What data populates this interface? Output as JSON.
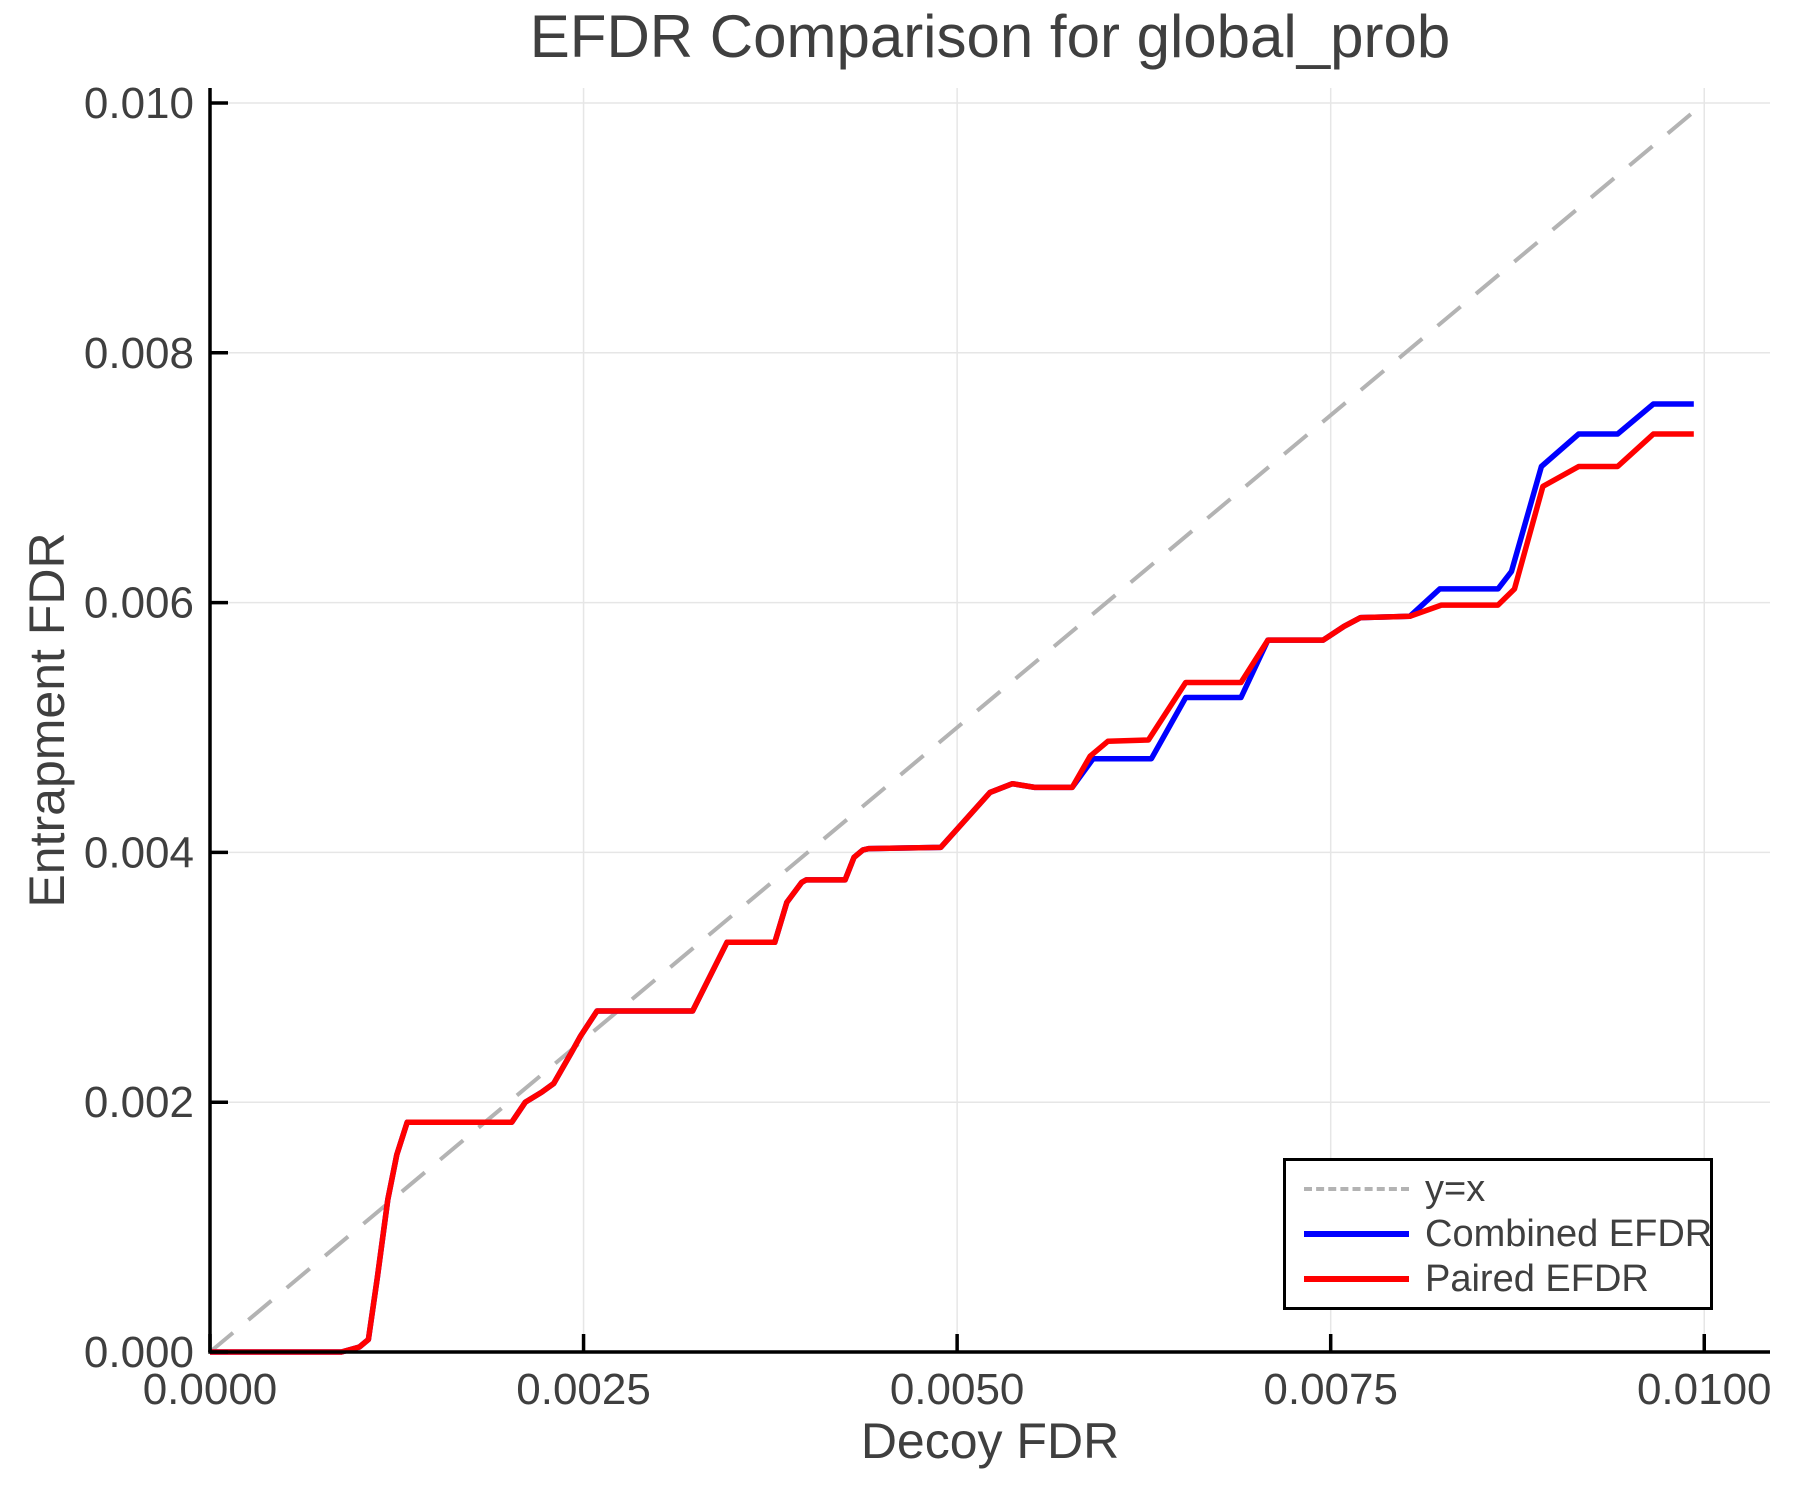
{
  "figure": {
    "title": "EFDR Comparison for global_prob",
    "xlabel": "Decoy FDR",
    "ylabel": "Entrapment FDR"
  },
  "chart_data": {
    "type": "line",
    "title": "EFDR Comparison for global_prob",
    "xlabel": "Decoy FDR",
    "ylabel": "Entrapment FDR",
    "xlim": [
      0.0,
      0.01044
    ],
    "ylim": [
      0.0,
      0.01012
    ],
    "grid": true,
    "legend_position": "lower right",
    "xticks": {
      "values": [
        0.0,
        0.0025,
        0.005,
        0.0075,
        0.01
      ],
      "labels": [
        "0.0000",
        "0.0025",
        "0.0050",
        "0.0075",
        "0.0100"
      ]
    },
    "yticks": {
      "values": [
        0.0,
        0.002,
        0.004,
        0.006,
        0.008,
        0.01
      ],
      "labels": [
        "0.000",
        "0.002",
        "0.004",
        "0.006",
        "0.008",
        "0.010"
      ]
    },
    "grid_color": "#e6e6e6",
    "axis_color": "#000000",
    "text_color": "#3f3f3f",
    "series": [
      {
        "name": "y=x",
        "color": "#b3b3b3",
        "style": "dashed",
        "points": [
          [
            0.0,
            0.0
          ],
          [
            0.00995,
            0.00995
          ]
        ]
      },
      {
        "name": "Combined EFDR",
        "color": "#0000ff",
        "style": "solid",
        "points": [
          [
            0.0,
            0.0
          ],
          [
            0.00088,
            0.0
          ],
          [
            0.001,
            4e-05
          ],
          [
            0.00106,
            0.0001
          ],
          [
            0.00112,
            0.0006
          ],
          [
            0.00119,
            0.00122
          ],
          [
            0.00125,
            0.00158
          ],
          [
            0.00132,
            0.00184
          ],
          [
            0.00202,
            0.00184
          ],
          [
            0.00211,
            0.002
          ],
          [
            0.00222,
            0.00208
          ],
          [
            0.0023,
            0.00215
          ],
          [
            0.00242,
            0.0024
          ],
          [
            0.00248,
            0.00253
          ],
          [
            0.00259,
            0.00273
          ],
          [
            0.00323,
            0.00273
          ],
          [
            0.00346,
            0.00328
          ],
          [
            0.00378,
            0.00328
          ],
          [
            0.00386,
            0.0036
          ],
          [
            0.00396,
            0.00376
          ],
          [
            0.00399,
            0.00378
          ],
          [
            0.00425,
            0.00378
          ],
          [
            0.00431,
            0.00396
          ],
          [
            0.00437,
            0.00402
          ],
          [
            0.00441,
            0.00403
          ],
          [
            0.00489,
            0.00404
          ],
          [
            0.00522,
            0.00448
          ],
          [
            0.00537,
            0.00455
          ],
          [
            0.00552,
            0.00452
          ],
          [
            0.00577,
            0.00452
          ],
          [
            0.00591,
            0.00475
          ],
          [
            0.0063,
            0.00475
          ],
          [
            0.00653,
            0.00524
          ],
          [
            0.0069,
            0.00524
          ],
          [
            0.00708,
            0.0057
          ],
          [
            0.00745,
            0.0057
          ],
          [
            0.00759,
            0.00581
          ],
          [
            0.0077,
            0.00588
          ],
          [
            0.00803,
            0.00589
          ],
          [
            0.00823,
            0.00611
          ],
          [
            0.00862,
            0.00611
          ],
          [
            0.00871,
            0.00625
          ],
          [
            0.00891,
            0.00709
          ],
          [
            0.00916,
            0.00735
          ],
          [
            0.00942,
            0.00735
          ],
          [
            0.00966,
            0.00759
          ],
          [
            0.00993,
            0.00759
          ]
        ]
      },
      {
        "name": "Paired EFDR",
        "color": "#ff0000",
        "style": "solid",
        "points": [
          [
            0.0,
            0.0
          ],
          [
            0.00088,
            0.0
          ],
          [
            0.001,
            4e-05
          ],
          [
            0.00106,
            0.0001
          ],
          [
            0.00112,
            0.0006
          ],
          [
            0.00119,
            0.00122
          ],
          [
            0.00125,
            0.00158
          ],
          [
            0.00132,
            0.00184
          ],
          [
            0.00202,
            0.00184
          ],
          [
            0.00211,
            0.002
          ],
          [
            0.00222,
            0.00208
          ],
          [
            0.0023,
            0.00215
          ],
          [
            0.00242,
            0.0024
          ],
          [
            0.00248,
            0.00253
          ],
          [
            0.00259,
            0.00273
          ],
          [
            0.00323,
            0.00273
          ],
          [
            0.00346,
            0.00328
          ],
          [
            0.00378,
            0.00328
          ],
          [
            0.00386,
            0.0036
          ],
          [
            0.00396,
            0.00376
          ],
          [
            0.00399,
            0.00378
          ],
          [
            0.00425,
            0.00378
          ],
          [
            0.00431,
            0.00396
          ],
          [
            0.00437,
            0.00402
          ],
          [
            0.00441,
            0.00403
          ],
          [
            0.00489,
            0.00404
          ],
          [
            0.00522,
            0.00448
          ],
          [
            0.00537,
            0.00455
          ],
          [
            0.00552,
            0.00452
          ],
          [
            0.00577,
            0.00452
          ],
          [
            0.00589,
            0.00477
          ],
          [
            0.00601,
            0.00489
          ],
          [
            0.00628,
            0.0049
          ],
          [
            0.00653,
            0.00536
          ],
          [
            0.0069,
            0.00536
          ],
          [
            0.00708,
            0.0057
          ],
          [
            0.00745,
            0.0057
          ],
          [
            0.00759,
            0.00581
          ],
          [
            0.0077,
            0.00588
          ],
          [
            0.00803,
            0.00589
          ],
          [
            0.00824,
            0.00598
          ],
          [
            0.00862,
            0.00598
          ],
          [
            0.00873,
            0.00611
          ],
          [
            0.00892,
            0.00693
          ],
          [
            0.00916,
            0.00709
          ],
          [
            0.00942,
            0.00709
          ],
          [
            0.00966,
            0.00735
          ],
          [
            0.00993,
            0.00735
          ]
        ]
      }
    ]
  }
}
